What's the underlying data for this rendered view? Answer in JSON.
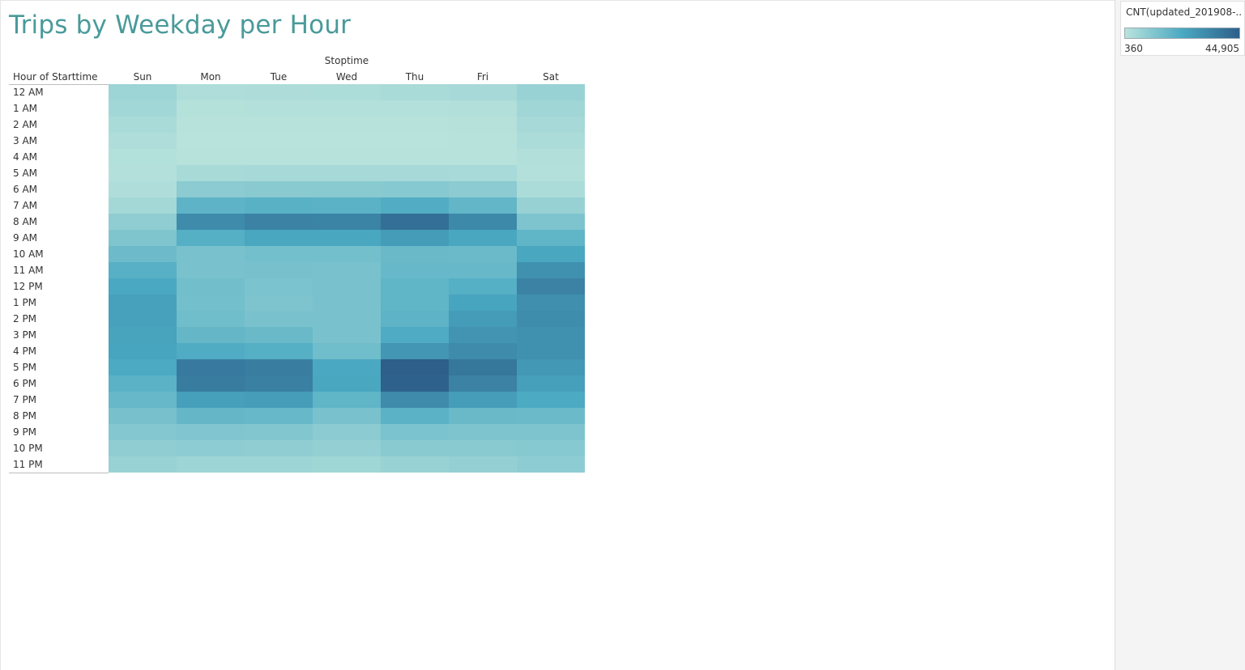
{
  "title": "Trips by Weekday per Hour",
  "legend": {
    "title": "CNT(updated_201908-...",
    "min_label": "360",
    "max_label": "44,905",
    "color_low": "#b9e3dc",
    "color_mid": "#4aa9c2",
    "color_high": "#2d5f8a"
  },
  "chart_data": {
    "type": "heatmap",
    "title": "Trips by Weekday per Hour",
    "column_header": "Stoptime",
    "row_header": "Hour of Starttime",
    "columns": [
      "Sun",
      "Mon",
      "Tue",
      "Wed",
      "Thu",
      "Fri",
      "Sat"
    ],
    "rows": [
      "12 AM",
      "1 AM",
      "2 AM",
      "3 AM",
      "4 AM",
      "5 AM",
      "6 AM",
      "7 AM",
      "8 AM",
      "9 AM",
      "10 AM",
      "11 AM",
      "12 PM",
      "1 PM",
      "2 PM",
      "3 PM",
      "4 PM",
      "5 PM",
      "6 PM",
      "7 PM",
      "8 PM",
      "9 PM",
      "10 PM",
      "11 PM"
    ],
    "color_range": [
      360,
      44905
    ],
    "values": [
      [
        6500,
        2500,
        2800,
        3000,
        3900,
        4400,
        7600
      ],
      [
        5400,
        1300,
        1500,
        1500,
        1600,
        1900,
        5800
      ],
      [
        3900,
        800,
        900,
        900,
        900,
        1100,
        4600
      ],
      [
        2500,
        600,
        650,
        600,
        650,
        700,
        3200
      ],
      [
        1800,
        700,
        700,
        700,
        700,
        700,
        2000
      ],
      [
        1500,
        4200,
        4500,
        4500,
        4500,
        4300,
        1600
      ],
      [
        2500,
        10500,
        11000,
        11000,
        11500,
        10500,
        3500
      ],
      [
        5100,
        20500,
        21500,
        21000,
        23000,
        19500,
        7900
      ],
      [
        9700,
        33000,
        35500,
        35000,
        40500,
        33500,
        13500
      ],
      [
        13200,
        22500,
        25500,
        25500,
        28500,
        25500,
        20000
      ],
      [
        17200,
        14500,
        15500,
        15500,
        18000,
        17500,
        25500
      ],
      [
        22000,
        14500,
        15000,
        14500,
        18500,
        18500,
        31500
      ],
      [
        25000,
        16000,
        14000,
        14500,
        20000,
        22500,
        35500
      ],
      [
        27000,
        15500,
        13500,
        14500,
        20000,
        26000,
        32000
      ],
      [
        27000,
        16500,
        14500,
        14500,
        20500,
        28500,
        32500
      ],
      [
        26500,
        19000,
        18000,
        14500,
        24000,
        30500,
        31500
      ],
      [
        26000,
        23500,
        22500,
        16500,
        30000,
        33000,
        31500
      ],
      [
        24500,
        37500,
        36500,
        25000,
        44905,
        38500,
        29500
      ],
      [
        21000,
        37000,
        36000,
        25500,
        44000,
        35500,
        27500
      ],
      [
        18500,
        27500,
        28000,
        20000,
        33000,
        28000,
        24500
      ],
      [
        15000,
        19000,
        18500,
        14500,
        21000,
        18000,
        17500
      ],
      [
        12000,
        13000,
        12500,
        10500,
        14000,
        13500,
        13500
      ],
      [
        9500,
        10000,
        9500,
        8500,
        11000,
        11000,
        11500
      ],
      [
        7500,
        6500,
        6500,
        6000,
        7500,
        8500,
        10000
      ]
    ]
  }
}
